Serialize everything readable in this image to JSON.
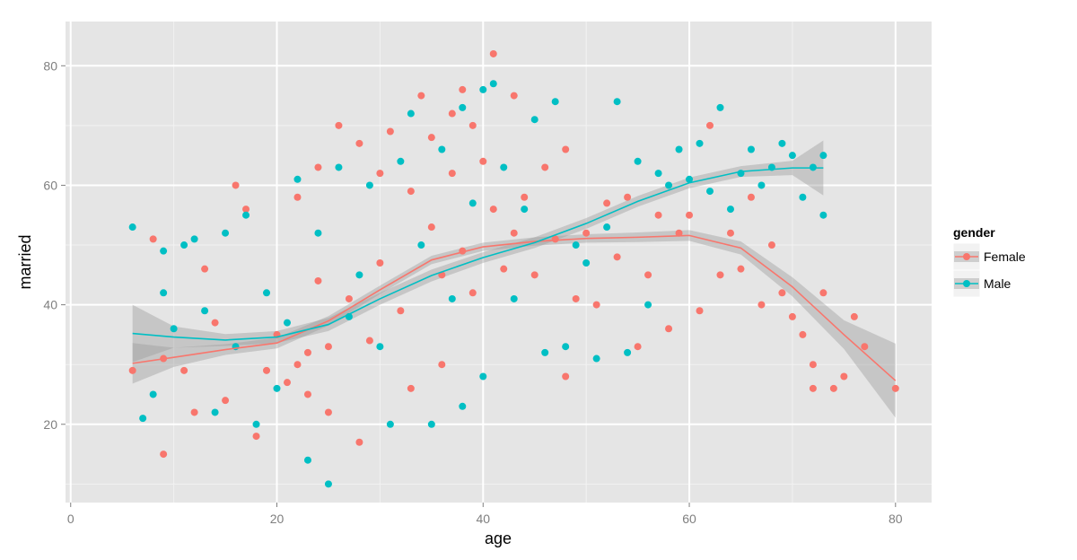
{
  "chart_data": {
    "type": "scatter",
    "xlabel": "age",
    "ylabel": "married",
    "xlim": [
      -0.5,
      83.5
    ],
    "ylim": [
      6.9,
      87.4
    ],
    "x_ticks": [
      0,
      20,
      40,
      60,
      80
    ],
    "y_ticks": [
      20,
      40,
      60,
      80
    ],
    "grid": true,
    "legend": {
      "title": "gender",
      "placement": "right"
    },
    "series": [
      {
        "name": "Female",
        "color": "#F8766D",
        "smooth": {
          "x": [
            6,
            10,
            15,
            20,
            25,
            30,
            35,
            40,
            45,
            50,
            55,
            60,
            65,
            70,
            75,
            80
          ],
          "y": [
            30.2,
            31.2,
            32.5,
            33.6,
            37.3,
            42.5,
            47.5,
            49.7,
            50.6,
            51.1,
            51.3,
            51.6,
            49.5,
            43.0,
            35.0,
            27.3
          ],
          "band_half_width": [
            3.4,
            1.6,
            0.9,
            0.9,
            0.8,
            0.7,
            0.7,
            0.7,
            0.7,
            0.7,
            0.8,
            0.9,
            1.1,
            1.6,
            2.4,
            6.2
          ]
        },
        "points": [
          [
            6,
            29
          ],
          [
            8,
            51
          ],
          [
            9,
            15
          ],
          [
            9,
            31
          ],
          [
            11,
            29
          ],
          [
            12,
            22
          ],
          [
            13,
            46
          ],
          [
            14,
            37
          ],
          [
            15,
            24
          ],
          [
            16,
            60
          ],
          [
            17,
            56
          ],
          [
            18,
            18
          ],
          [
            19,
            29
          ],
          [
            20,
            35
          ],
          [
            21,
            27
          ],
          [
            22,
            30
          ],
          [
            22,
            58
          ],
          [
            23,
            25
          ],
          [
            23,
            32
          ],
          [
            24,
            44
          ],
          [
            24,
            63
          ],
          [
            25,
            33
          ],
          [
            25,
            22
          ],
          [
            26,
            70
          ],
          [
            27,
            41
          ],
          [
            28,
            17
          ],
          [
            28,
            67
          ],
          [
            29,
            34
          ],
          [
            30,
            47
          ],
          [
            30,
            62
          ],
          [
            31,
            69
          ],
          [
            32,
            39
          ],
          [
            33,
            26
          ],
          [
            33,
            59
          ],
          [
            34,
            75
          ],
          [
            35,
            53
          ],
          [
            35,
            68
          ],
          [
            36,
            45
          ],
          [
            36,
            30
          ],
          [
            37,
            62
          ],
          [
            37,
            72
          ],
          [
            38,
            76
          ],
          [
            38,
            49
          ],
          [
            39,
            70
          ],
          [
            39,
            42
          ],
          [
            40,
            64
          ],
          [
            41,
            82
          ],
          [
            41,
            56
          ],
          [
            42,
            46
          ],
          [
            43,
            75
          ],
          [
            43,
            52
          ],
          [
            44,
            58
          ],
          [
            45,
            45
          ],
          [
            46,
            63
          ],
          [
            47,
            51
          ],
          [
            48,
            28
          ],
          [
            48,
            66
          ],
          [
            49,
            41
          ],
          [
            50,
            52
          ],
          [
            51,
            40
          ],
          [
            52,
            57
          ],
          [
            53,
            48
          ],
          [
            54,
            58
          ],
          [
            55,
            33
          ],
          [
            56,
            45
          ],
          [
            57,
            55
          ],
          [
            58,
            36
          ],
          [
            59,
            52
          ],
          [
            60,
            55
          ],
          [
            61,
            39
          ],
          [
            62,
            70
          ],
          [
            63,
            45
          ],
          [
            64,
            52
          ],
          [
            65,
            46
          ],
          [
            66,
            58
          ],
          [
            67,
            40
          ],
          [
            68,
            50
          ],
          [
            69,
            42
          ],
          [
            70,
            38
          ],
          [
            71,
            35
          ],
          [
            72,
            30
          ],
          [
            72,
            26
          ],
          [
            73,
            42
          ],
          [
            74,
            26
          ],
          [
            75,
            28
          ],
          [
            76,
            38
          ],
          [
            77,
            33
          ],
          [
            80,
            26
          ]
        ]
      },
      {
        "name": "Male",
        "color": "#00BFC4",
        "smooth": {
          "x": [
            6,
            10,
            15,
            20,
            25,
            30,
            35,
            40,
            45,
            50,
            55,
            60,
            65,
            70,
            73
          ],
          "y": [
            35.2,
            34.6,
            34.1,
            34.6,
            36.7,
            41.0,
            44.9,
            47.9,
            50.4,
            53.6,
            57.3,
            60.4,
            62.3,
            62.9,
            62.9
          ],
          "band_half_width": [
            4.8,
            1.8,
            1.0,
            1.0,
            1.1,
            1.0,
            1.0,
            0.9,
            0.9,
            0.9,
            0.9,
            0.9,
            0.9,
            1.2,
            4.6
          ]
        },
        "points": [
          [
            6,
            53
          ],
          [
            7,
            21
          ],
          [
            8,
            25
          ],
          [
            9,
            49
          ],
          [
            9,
            42
          ],
          [
            10,
            36
          ],
          [
            11,
            50
          ],
          [
            12,
            51
          ],
          [
            13,
            39
          ],
          [
            14,
            22
          ],
          [
            15,
            52
          ],
          [
            16,
            33
          ],
          [
            17,
            55
          ],
          [
            18,
            20
          ],
          [
            19,
            42
          ],
          [
            20,
            26
          ],
          [
            21,
            37
          ],
          [
            22,
            61
          ],
          [
            23,
            14
          ],
          [
            24,
            52
          ],
          [
            25,
            10
          ],
          [
            26,
            63
          ],
          [
            27,
            38
          ],
          [
            28,
            45
          ],
          [
            29,
            60
          ],
          [
            30,
            33
          ],
          [
            31,
            20
          ],
          [
            32,
            64
          ],
          [
            33,
            72
          ],
          [
            34,
            50
          ],
          [
            35,
            20
          ],
          [
            36,
            66
          ],
          [
            37,
            41
          ],
          [
            38,
            23
          ],
          [
            38,
            73
          ],
          [
            39,
            57
          ],
          [
            40,
            76
          ],
          [
            40,
            28
          ],
          [
            41,
            77
          ],
          [
            42,
            63
          ],
          [
            43,
            41
          ],
          [
            44,
            56
          ],
          [
            45,
            71
          ],
          [
            46,
            32
          ],
          [
            47,
            74
          ],
          [
            48,
            33
          ],
          [
            49,
            50
          ],
          [
            50,
            47
          ],
          [
            51,
            31
          ],
          [
            52,
            53
          ],
          [
            53,
            74
          ],
          [
            54,
            32
          ],
          [
            55,
            64
          ],
          [
            56,
            40
          ],
          [
            57,
            62
          ],
          [
            58,
            60
          ],
          [
            59,
            66
          ],
          [
            60,
            61
          ],
          [
            61,
            67
          ],
          [
            62,
            59
          ],
          [
            63,
            73
          ],
          [
            64,
            56
          ],
          [
            65,
            62
          ],
          [
            66,
            66
          ],
          [
            67,
            60
          ],
          [
            68,
            63
          ],
          [
            69,
            67
          ],
          [
            70,
            65
          ],
          [
            71,
            58
          ],
          [
            72,
            63
          ],
          [
            73,
            55
          ],
          [
            73,
            65
          ]
        ]
      }
    ]
  }
}
